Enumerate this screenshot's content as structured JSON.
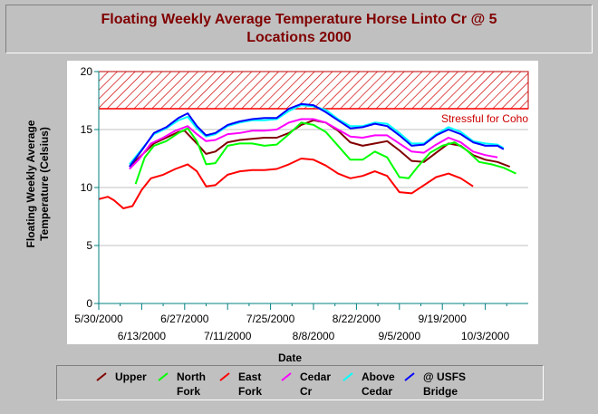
{
  "title_lines": [
    "Floating Weekly Average Temperature Horse Linto Cr @ 5",
    "Locations 2000"
  ],
  "chart_data": {
    "type": "line",
    "title": "Floating Weekly Average Temperature Horse Linto Cr @ 5 Locations 2000",
    "xlabel": "Date",
    "ylabel_lines": [
      "Floating Weekly Average",
      "Temperature (Celsius)"
    ],
    "ylim": [
      0,
      20
    ],
    "yticks": [
      0,
      5,
      10,
      15,
      20
    ],
    "y_tick_labels": [
      "0",
      "5",
      "10",
      "15",
      "20"
    ],
    "xlim_day": [
      0,
      140
    ],
    "x_ticks_upper": [
      {
        "day": 0,
        "label": "5/30/2000"
      },
      {
        "day": 28,
        "label": "6/27/2000"
      },
      {
        "day": 56,
        "label": "7/25/2000"
      },
      {
        "day": 84,
        "label": "8/22/2000"
      },
      {
        "day": 112,
        "label": "9/19/2000"
      }
    ],
    "x_ticks_lower": [
      {
        "day": 14,
        "label": "6/13/2000"
      },
      {
        "day": 42,
        "label": "7/11/2000"
      },
      {
        "day": 70,
        "label": "8/8/2000"
      },
      {
        "day": 98,
        "label": "9/5/2000"
      },
      {
        "day": 126,
        "label": "10/3/2000"
      }
    ],
    "threshold": {
      "label": "Stressful for Coho",
      "from": 16.8,
      "to": 20
    },
    "grid": true,
    "legend_position": "bottom",
    "series": [
      {
        "name": "Upper",
        "legend_lines": [
          "Upper"
        ],
        "color": "#800000",
        "points": [
          [
            10,
            11.8
          ],
          [
            14,
            12.8
          ],
          [
            18,
            13.8
          ],
          [
            22,
            14.3
          ],
          [
            26,
            14.8
          ],
          [
            28,
            14.9
          ],
          [
            32,
            13.8
          ],
          [
            35,
            12.9
          ],
          [
            38,
            13.1
          ],
          [
            42,
            13.9
          ],
          [
            46,
            14.1
          ],
          [
            50,
            14.2
          ],
          [
            54,
            14.3
          ],
          [
            58,
            14.3
          ],
          [
            62,
            14.7
          ],
          [
            66,
            15.4
          ],
          [
            70,
            15.8
          ],
          [
            74,
            15.6
          ],
          [
            78,
            14.9
          ],
          [
            82,
            13.9
          ],
          [
            86,
            13.6
          ],
          [
            90,
            13.8
          ],
          [
            94,
            14.0
          ],
          [
            98,
            13.2
          ],
          [
            102,
            12.3
          ],
          [
            106,
            12.2
          ],
          [
            110,
            13.0
          ],
          [
            114,
            13.8
          ],
          [
            118,
            13.6
          ],
          [
            122,
            12.8
          ],
          [
            126,
            12.4
          ],
          [
            130,
            12.2
          ],
          [
            134,
            11.8
          ]
        ]
      },
      {
        "name": "North Fork",
        "legend_lines": [
          "North",
          "Fork"
        ],
        "color": "#00ff00",
        "points": [
          [
            12,
            10.3
          ],
          [
            15,
            12.6
          ],
          [
            18,
            13.6
          ],
          [
            22,
            14.0
          ],
          [
            26,
            14.7
          ],
          [
            29,
            15.1
          ],
          [
            32,
            14.0
          ],
          [
            35,
            12.0
          ],
          [
            38,
            12.1
          ],
          [
            42,
            13.6
          ],
          [
            46,
            13.8
          ],
          [
            50,
            13.8
          ],
          [
            54,
            13.6
          ],
          [
            58,
            13.7
          ],
          [
            62,
            14.6
          ],
          [
            66,
            15.6
          ],
          [
            70,
            15.4
          ],
          [
            74,
            14.8
          ],
          [
            78,
            13.6
          ],
          [
            82,
            12.4
          ],
          [
            86,
            12.4
          ],
          [
            90,
            13.1
          ],
          [
            94,
            12.6
          ],
          [
            98,
            10.9
          ],
          [
            101,
            10.8
          ],
          [
            104,
            11.8
          ],
          [
            108,
            13.0
          ],
          [
            112,
            13.6
          ],
          [
            116,
            13.9
          ],
          [
            120,
            13.2
          ],
          [
            124,
            12.2
          ],
          [
            128,
            12.0
          ],
          [
            132,
            11.7
          ],
          [
            136,
            11.2
          ]
        ]
      },
      {
        "name": "East Fork",
        "legend_lines": [
          "East",
          "Fork"
        ],
        "color": "#ff0000",
        "points": [
          [
            0,
            9.0
          ],
          [
            3,
            9.2
          ],
          [
            5,
            8.9
          ],
          [
            8,
            8.2
          ],
          [
            11,
            8.4
          ],
          [
            14,
            9.8
          ],
          [
            17,
            10.8
          ],
          [
            21,
            11.1
          ],
          [
            25,
            11.6
          ],
          [
            29,
            12.0
          ],
          [
            32,
            11.4
          ],
          [
            35,
            10.1
          ],
          [
            38,
            10.2
          ],
          [
            42,
            11.1
          ],
          [
            46,
            11.4
          ],
          [
            50,
            11.5
          ],
          [
            54,
            11.5
          ],
          [
            58,
            11.6
          ],
          [
            62,
            12.0
          ],
          [
            66,
            12.5
          ],
          [
            70,
            12.4
          ],
          [
            74,
            11.9
          ],
          [
            78,
            11.2
          ],
          [
            82,
            10.8
          ],
          [
            86,
            11.0
          ],
          [
            90,
            11.4
          ],
          [
            94,
            11.0
          ],
          [
            98,
            9.6
          ],
          [
            102,
            9.5
          ],
          [
            106,
            10.2
          ],
          [
            110,
            10.9
          ],
          [
            114,
            11.2
          ],
          [
            118,
            10.8
          ],
          [
            122,
            10.1
          ]
        ]
      },
      {
        "name": "Cedar Cr",
        "legend_lines": [
          "Cedar",
          "Cr"
        ],
        "color": "#ff00ff",
        "points": [
          [
            10,
            11.6
          ],
          [
            13,
            12.4
          ],
          [
            17,
            13.8
          ],
          [
            21,
            14.3
          ],
          [
            25,
            14.9
          ],
          [
            29,
            15.3
          ],
          [
            32,
            14.6
          ],
          [
            35,
            14.0
          ],
          [
            38,
            14.1
          ],
          [
            42,
            14.6
          ],
          [
            46,
            14.7
          ],
          [
            50,
            14.9
          ],
          [
            54,
            14.9
          ],
          [
            58,
            15.0
          ],
          [
            62,
            15.6
          ],
          [
            66,
            15.9
          ],
          [
            70,
            15.9
          ],
          [
            74,
            15.6
          ],
          [
            78,
            15.0
          ],
          [
            82,
            14.4
          ],
          [
            86,
            14.3
          ],
          [
            90,
            14.5
          ],
          [
            94,
            14.5
          ],
          [
            98,
            13.8
          ],
          [
            102,
            13.1
          ],
          [
            106,
            13.0
          ],
          [
            110,
            13.7
          ],
          [
            114,
            14.3
          ],
          [
            118,
            13.9
          ],
          [
            122,
            13.1
          ],
          [
            126,
            12.8
          ],
          [
            130,
            12.6
          ]
        ]
      },
      {
        "name": "Above Cedar",
        "legend_lines": [
          "Above",
          "Cedar"
        ],
        "color": "#00ffff",
        "points": [
          [
            10,
            12.0
          ],
          [
            14,
            13.3
          ],
          [
            18,
            14.6
          ],
          [
            22,
            15.1
          ],
          [
            26,
            15.8
          ],
          [
            29,
            16.1
          ],
          [
            32,
            15.1
          ],
          [
            35,
            14.4
          ],
          [
            38,
            14.6
          ],
          [
            42,
            15.3
          ],
          [
            46,
            15.6
          ],
          [
            50,
            15.8
          ],
          [
            54,
            15.8
          ],
          [
            58,
            15.9
          ],
          [
            62,
            16.6
          ],
          [
            66,
            17.1
          ],
          [
            70,
            17.0
          ],
          [
            74,
            16.7
          ],
          [
            78,
            15.9
          ],
          [
            82,
            15.3
          ],
          [
            86,
            15.3
          ],
          [
            90,
            15.6
          ],
          [
            94,
            15.5
          ],
          [
            98,
            14.7
          ],
          [
            102,
            13.8
          ],
          [
            106,
            13.8
          ],
          [
            110,
            14.6
          ],
          [
            114,
            15.2
          ],
          [
            118,
            14.8
          ],
          [
            122,
            14.0
          ],
          [
            126,
            13.8
          ],
          [
            130,
            13.7
          ],
          [
            132,
            13.4
          ]
        ]
      },
      {
        "name": "@ USFS Bridge",
        "legend_lines": [
          "@ USFS",
          "Bridge"
        ],
        "color": "#0000ff",
        "points": [
          [
            10,
            11.8
          ],
          [
            14,
            13.2
          ],
          [
            18,
            14.7
          ],
          [
            22,
            15.2
          ],
          [
            26,
            16.0
          ],
          [
            29,
            16.4
          ],
          [
            32,
            15.3
          ],
          [
            35,
            14.5
          ],
          [
            38,
            14.7
          ],
          [
            42,
            15.4
          ],
          [
            46,
            15.7
          ],
          [
            50,
            15.9
          ],
          [
            54,
            16.0
          ],
          [
            58,
            16.0
          ],
          [
            62,
            16.8
          ],
          [
            66,
            17.2
          ],
          [
            70,
            17.1
          ],
          [
            74,
            16.5
          ],
          [
            78,
            15.8
          ],
          [
            82,
            15.1
          ],
          [
            86,
            15.2
          ],
          [
            90,
            15.5
          ],
          [
            94,
            15.3
          ],
          [
            98,
            14.5
          ],
          [
            102,
            13.6
          ],
          [
            106,
            13.7
          ],
          [
            110,
            14.5
          ],
          [
            114,
            15.0
          ],
          [
            118,
            14.6
          ],
          [
            122,
            13.9
          ],
          [
            126,
            13.6
          ],
          [
            130,
            13.6
          ],
          [
            132,
            13.3
          ]
        ]
      }
    ]
  }
}
